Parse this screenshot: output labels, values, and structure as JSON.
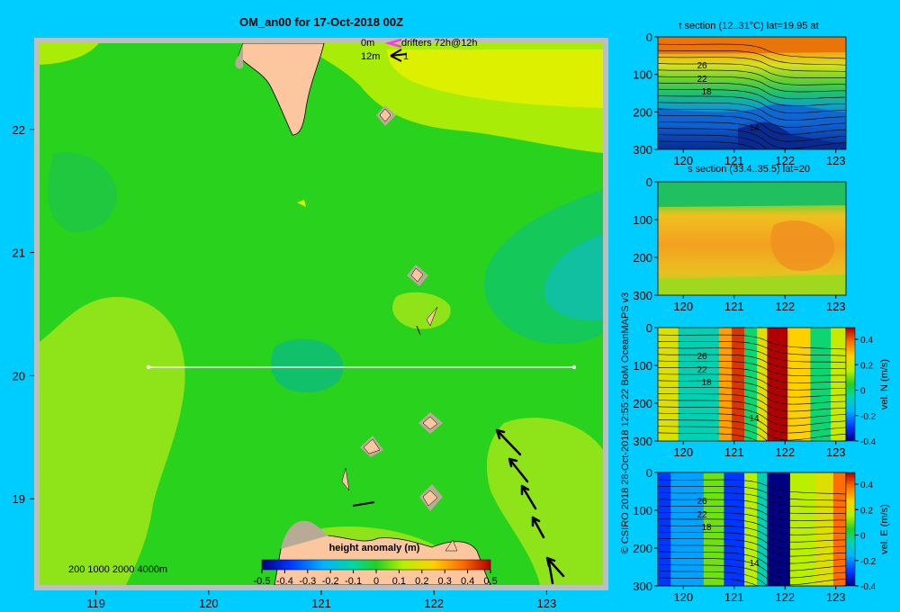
{
  "figure": {
    "title": "OM_an00 for 17-Oct-2018 00Z",
    "credit": "© CSIRO 2018  28-Oct-2018 12:55:22 BoM OceanMAPS v3",
    "colors": {
      "background": "#00cdff",
      "land": "#fcc79e",
      "land_shadow": "#b8ab95",
      "frame": "#bebebe",
      "section_line": "#ffffff",
      "drifter_legend": "#ff33ff"
    }
  },
  "map": {
    "legend": {
      "drifters_depth": "0m",
      "drifters_label": "drifters 72h@12h",
      "current_depth": "12m",
      "current_label": "1",
      "bathymetry_label": "200  1000  2000  4000m"
    },
    "colorbar": {
      "title": "height anomaly (m)",
      "ticks": [
        "-0.5",
        "-0.4",
        "-0.3",
        "-0.2",
        "-0.1",
        "0",
        "0.1",
        "0.2",
        "0.3",
        "0.4",
        "0.5"
      ]
    }
  },
  "chart_data": [
    {
      "type": "heatmap",
      "title": "OM_an00 for 17-Oct-2018 00Z",
      "variable": "height anomaly (m)",
      "x_ticks": [
        "119",
        "120",
        "121",
        "122",
        "123"
      ],
      "y_ticks": [
        "19",
        "20",
        "21",
        "22"
      ],
      "xlim": [
        118.5,
        123.5
      ],
      "ylim": [
        18.3,
        22.7
      ],
      "clim": [
        -0.5,
        0.5
      ],
      "background_value": 0.05,
      "features": [
        {
          "kind": "positive anomaly",
          "lon": [
            120.3,
            122.5
          ],
          "lat": [
            21.6,
            22.7
          ],
          "value": 0.15
        },
        {
          "kind": "negative anomaly",
          "lon": [
            122.8,
            123.5
          ],
          "lat": [
            19.8,
            21.3
          ],
          "value": -0.05
        },
        {
          "kind": "negative anomaly",
          "lon": [
            119.9,
            120.7
          ],
          "lat": [
            19.8,
            20.3
          ],
          "value": -0.03
        },
        {
          "kind": "positive anomaly",
          "lon": [
            118.5,
            120.0
          ],
          "lat": [
            18.3,
            20.5
          ],
          "value": 0.1
        },
        {
          "kind": "positive anomaly",
          "lon": [
            122.6,
            123.5
          ],
          "lat": [
            18.3,
            19.5
          ],
          "value": 0.12
        }
      ],
      "section_line": {
        "lat": 20.0,
        "lon": [
          119.5,
          123.2
        ]
      }
    },
    {
      "type": "heatmap",
      "title": "t section (12..31°C) lat=19.95 at",
      "x_ticks": [
        "120",
        "121",
        "122",
        "123"
      ],
      "y_ticks": [
        "0",
        "100",
        "200",
        "300"
      ],
      "xlim": [
        119.5,
        123.2
      ],
      "ylim": [
        0,
        300
      ],
      "contour_labels": [
        "26",
        "22",
        "18",
        "14"
      ]
    },
    {
      "type": "heatmap",
      "title": "s section (33.4..35.5) lat=20",
      "x_ticks": [
        "120",
        "121",
        "122",
        "123"
      ],
      "y_ticks": [
        "0",
        "100",
        "200",
        "300"
      ],
      "xlim": [
        119.5,
        123.2
      ],
      "ylim": [
        0,
        300
      ]
    },
    {
      "type": "heatmap",
      "title": "vel. N (m/s)",
      "x_ticks": [
        "120",
        "121",
        "122",
        "123"
      ],
      "y_ticks": [
        "0",
        "100",
        "200",
        "300"
      ],
      "xlim": [
        119.5,
        123.2
      ],
      "ylim": [
        0,
        300
      ],
      "contour_labels": [
        "26",
        "22",
        "18",
        "14"
      ],
      "colorbar": {
        "label": "vel. N (m/s)",
        "ticks": [
          "0.4",
          "0.2",
          "0",
          "-0.2",
          "-0.4"
        ],
        "clim": [
          -0.4,
          0.4
        ]
      },
      "bands": [
        {
          "lon": [
            119.5,
            119.9
          ],
          "value": 0.15
        },
        {
          "lon": [
            119.9,
            120.7
          ],
          "value": -0.1
        },
        {
          "lon": [
            120.7,
            120.95
          ],
          "value": 0.25
        },
        {
          "lon": [
            120.95,
            121.2
          ],
          "value": 0.35
        },
        {
          "lon": [
            121.2,
            121.45
          ],
          "value": -0.05
        },
        {
          "lon": [
            121.45,
            121.65
          ],
          "value": 0.15
        },
        {
          "lon": [
            121.65,
            122.05
          ],
          "value": 0.45
        },
        {
          "lon": [
            122.05,
            122.5
          ],
          "value": 0.2
        },
        {
          "lon": [
            122.5,
            122.9
          ],
          "value": -0.05
        },
        {
          "lon": [
            122.9,
            123.2
          ],
          "value": 0.12
        }
      ]
    },
    {
      "type": "heatmap",
      "title": "vel. E (m/s)",
      "x_ticks": [
        "120",
        "121",
        "122",
        "123"
      ],
      "y_ticks": [
        "0",
        "100",
        "200",
        "300"
      ],
      "xlim": [
        119.5,
        123.2
      ],
      "ylim": [
        0,
        300
      ],
      "contour_labels": [
        "26",
        "22",
        "18",
        "14"
      ],
      "colorbar": {
        "label": "vel. E (m/s)",
        "ticks": [
          "0.4",
          "0.2",
          "0",
          "-0.2",
          "-0.4"
        ],
        "clim": [
          -0.4,
          0.4
        ]
      },
      "bands": [
        {
          "lon": [
            119.5,
            119.75
          ],
          "value": -0.3
        },
        {
          "lon": [
            119.75,
            120.4
          ],
          "value": -0.2
        },
        {
          "lon": [
            120.4,
            120.8
          ],
          "value": 0.05
        },
        {
          "lon": [
            120.8,
            121.2
          ],
          "value": -0.3
        },
        {
          "lon": [
            121.2,
            121.45
          ],
          "value": 0.1
        },
        {
          "lon": [
            121.45,
            121.65
          ],
          "value": -0.1
        },
        {
          "lon": [
            121.65,
            122.1
          ],
          "value": -0.4
        },
        {
          "lon": [
            122.1,
            122.6
          ],
          "value": 0.1
        },
        {
          "lon": [
            122.6,
            122.95
          ],
          "value": 0.15
        },
        {
          "lon": [
            122.95,
            123.2
          ],
          "value": 0.3
        }
      ]
    }
  ]
}
